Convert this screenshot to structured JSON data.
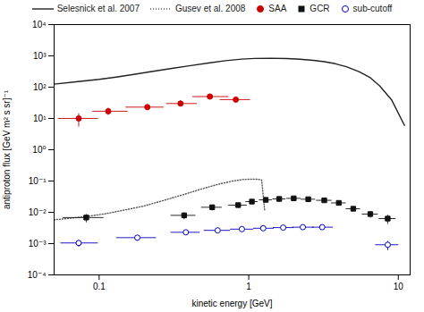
{
  "chart_data": {
    "type": "scatter",
    "xlabel": "kinetic energy [GeV]",
    "ylabel": "antiproton flux [GeV m² s sr]⁻¹",
    "log": true,
    "grid": false,
    "legend": "top",
    "xlim": [
      0.05,
      12
    ],
    "ylim": [
      0.0001,
      10000
    ],
    "xticks": [
      0.1,
      1,
      10
    ],
    "yticks": [
      {
        "value": 0.0001,
        "label": "10⁻⁴"
      },
      {
        "value": 0.001,
        "label": "10⁻³"
      },
      {
        "value": 0.01,
        "label": "10⁻²"
      },
      {
        "value": 0.1,
        "label": "10⁻¹"
      },
      {
        "value": 1,
        "label": "10⁰"
      },
      {
        "value": 10,
        "label": "10¹"
      },
      {
        "value": 100,
        "label": "10²"
      },
      {
        "value": 1000,
        "label": "10³"
      },
      {
        "value": 10000,
        "label": "10⁴"
      }
    ],
    "series": [
      {
        "name": "Selesnick et al. 2007",
        "type": "line",
        "color": "#222222",
        "line_style": "solid",
        "x": [
          0.05,
          0.07,
          0.1,
          0.13,
          0.17,
          0.22,
          0.3,
          0.4,
          0.55,
          0.7,
          0.9,
          1.1,
          1.4,
          1.8,
          2.2,
          2.7,
          3.2,
          3.8,
          4.5,
          5.5,
          6.5,
          7.5,
          9.0,
          11.0
        ],
        "values": [
          125,
          148,
          178,
          210,
          255,
          310,
          390,
          480,
          600,
          700,
          790,
          830,
          840,
          820,
          780,
          720,
          650,
          560,
          450,
          310,
          200,
          110,
          40,
          6
        ]
      },
      {
        "name": "Gusev et al. 2008",
        "type": "line",
        "color": "#555555",
        "line_style": "dotted",
        "x": [
          0.05,
          0.065,
          0.085,
          0.11,
          0.15,
          0.2,
          0.27,
          0.36,
          0.48,
          0.62,
          0.78,
          0.92,
          1.05,
          1.15,
          1.22,
          1.28
        ],
        "values": [
          0.0058,
          0.0065,
          0.0075,
          0.009,
          0.012,
          0.016,
          0.024,
          0.036,
          0.055,
          0.078,
          0.1,
          0.112,
          0.115,
          0.114,
          0.108,
          0.011
        ]
      },
      {
        "name": "SAA",
        "type": "scatter",
        "color": "#cc0000",
        "marker": "circle",
        "x": [
          0.073,
          0.115,
          0.21,
          0.35,
          0.55,
          0.82
        ],
        "values": [
          10.0,
          17.0,
          23.0,
          30.0,
          50.0,
          40.0
        ],
        "xerr_lo": [
          0.02,
          0.025,
          0.06,
          0.07,
          0.13,
          0.18
        ],
        "xerr_hi": [
          0.025,
          0.04,
          0.06,
          0.1,
          0.18,
          0.2
        ],
        "yerr_lo": [
          4.5,
          4.0,
          4.0,
          5.0,
          8.0,
          7.0
        ],
        "yerr_hi": [
          4.5,
          5.0,
          5.0,
          7.0,
          12.0,
          9.0
        ]
      },
      {
        "name": "GCR",
        "type": "scatter",
        "color": "#111111",
        "marker": "square",
        "x": [
          0.082,
          0.37,
          0.57,
          0.85,
          1.05,
          1.3,
          1.6,
          2.0,
          2.5,
          3.2,
          4.0,
          5.0,
          6.5,
          8.5
        ],
        "values": [
          0.0068,
          0.008,
          0.0145,
          0.017,
          0.022,
          0.025,
          0.0268,
          0.028,
          0.0262,
          0.0242,
          0.02,
          0.013,
          0.0088,
          0.0063
        ],
        "xerr_lo": [
          0.025,
          0.07,
          0.09,
          0.12,
          0.1,
          0.13,
          0.16,
          0.22,
          0.28,
          0.38,
          0.45,
          0.55,
          0.8,
          1.1
        ],
        "xerr_hi": [
          0.025,
          0.07,
          0.09,
          0.12,
          0.1,
          0.13,
          0.16,
          0.22,
          0.28,
          0.38,
          0.45,
          0.55,
          0.8,
          1.1
        ],
        "yerr_lo": [
          0.002,
          0.002,
          0.003,
          0.003,
          0.003,
          0.003,
          0.003,
          0.003,
          0.003,
          0.003,
          0.002,
          0.002,
          0.002,
          0.002
        ],
        "yerr_hi": [
          0.002,
          0.002,
          0.003,
          0.003,
          0.003,
          0.003,
          0.003,
          0.003,
          0.003,
          0.003,
          0.002,
          0.002,
          0.002,
          0.002
        ]
      },
      {
        "name": "sub-cutoff",
        "type": "scatter",
        "color": "#0000bb",
        "marker": "open_circle",
        "x": [
          0.073,
          0.18,
          0.38,
          0.62,
          0.9,
          1.25,
          1.7,
          2.3,
          3.1,
          8.5
        ],
        "values": [
          0.00105,
          0.00155,
          0.0023,
          0.00265,
          0.0029,
          0.0031,
          0.00325,
          0.00335,
          0.00335,
          0.00092
        ],
        "xerr_lo": [
          0.018,
          0.05,
          0.08,
          0.12,
          0.15,
          0.18,
          0.25,
          0.35,
          0.45,
          1.5
        ],
        "xerr_hi": [
          0.025,
          0.06,
          0.09,
          0.13,
          0.17,
          0.22,
          0.3,
          0.42,
          0.55,
          1.5
        ],
        "yerr_lo": [
          0.00025,
          0.0003,
          0.0003,
          0.0004,
          0.0004,
          0.0004,
          0.0004,
          0.0004,
          0.0004,
          0.0003
        ],
        "yerr_hi": [
          0.00025,
          0.0003,
          0.0003,
          0.0004,
          0.0004,
          0.0004,
          0.0004,
          0.0004,
          0.0004,
          0.0003
        ]
      }
    ]
  }
}
